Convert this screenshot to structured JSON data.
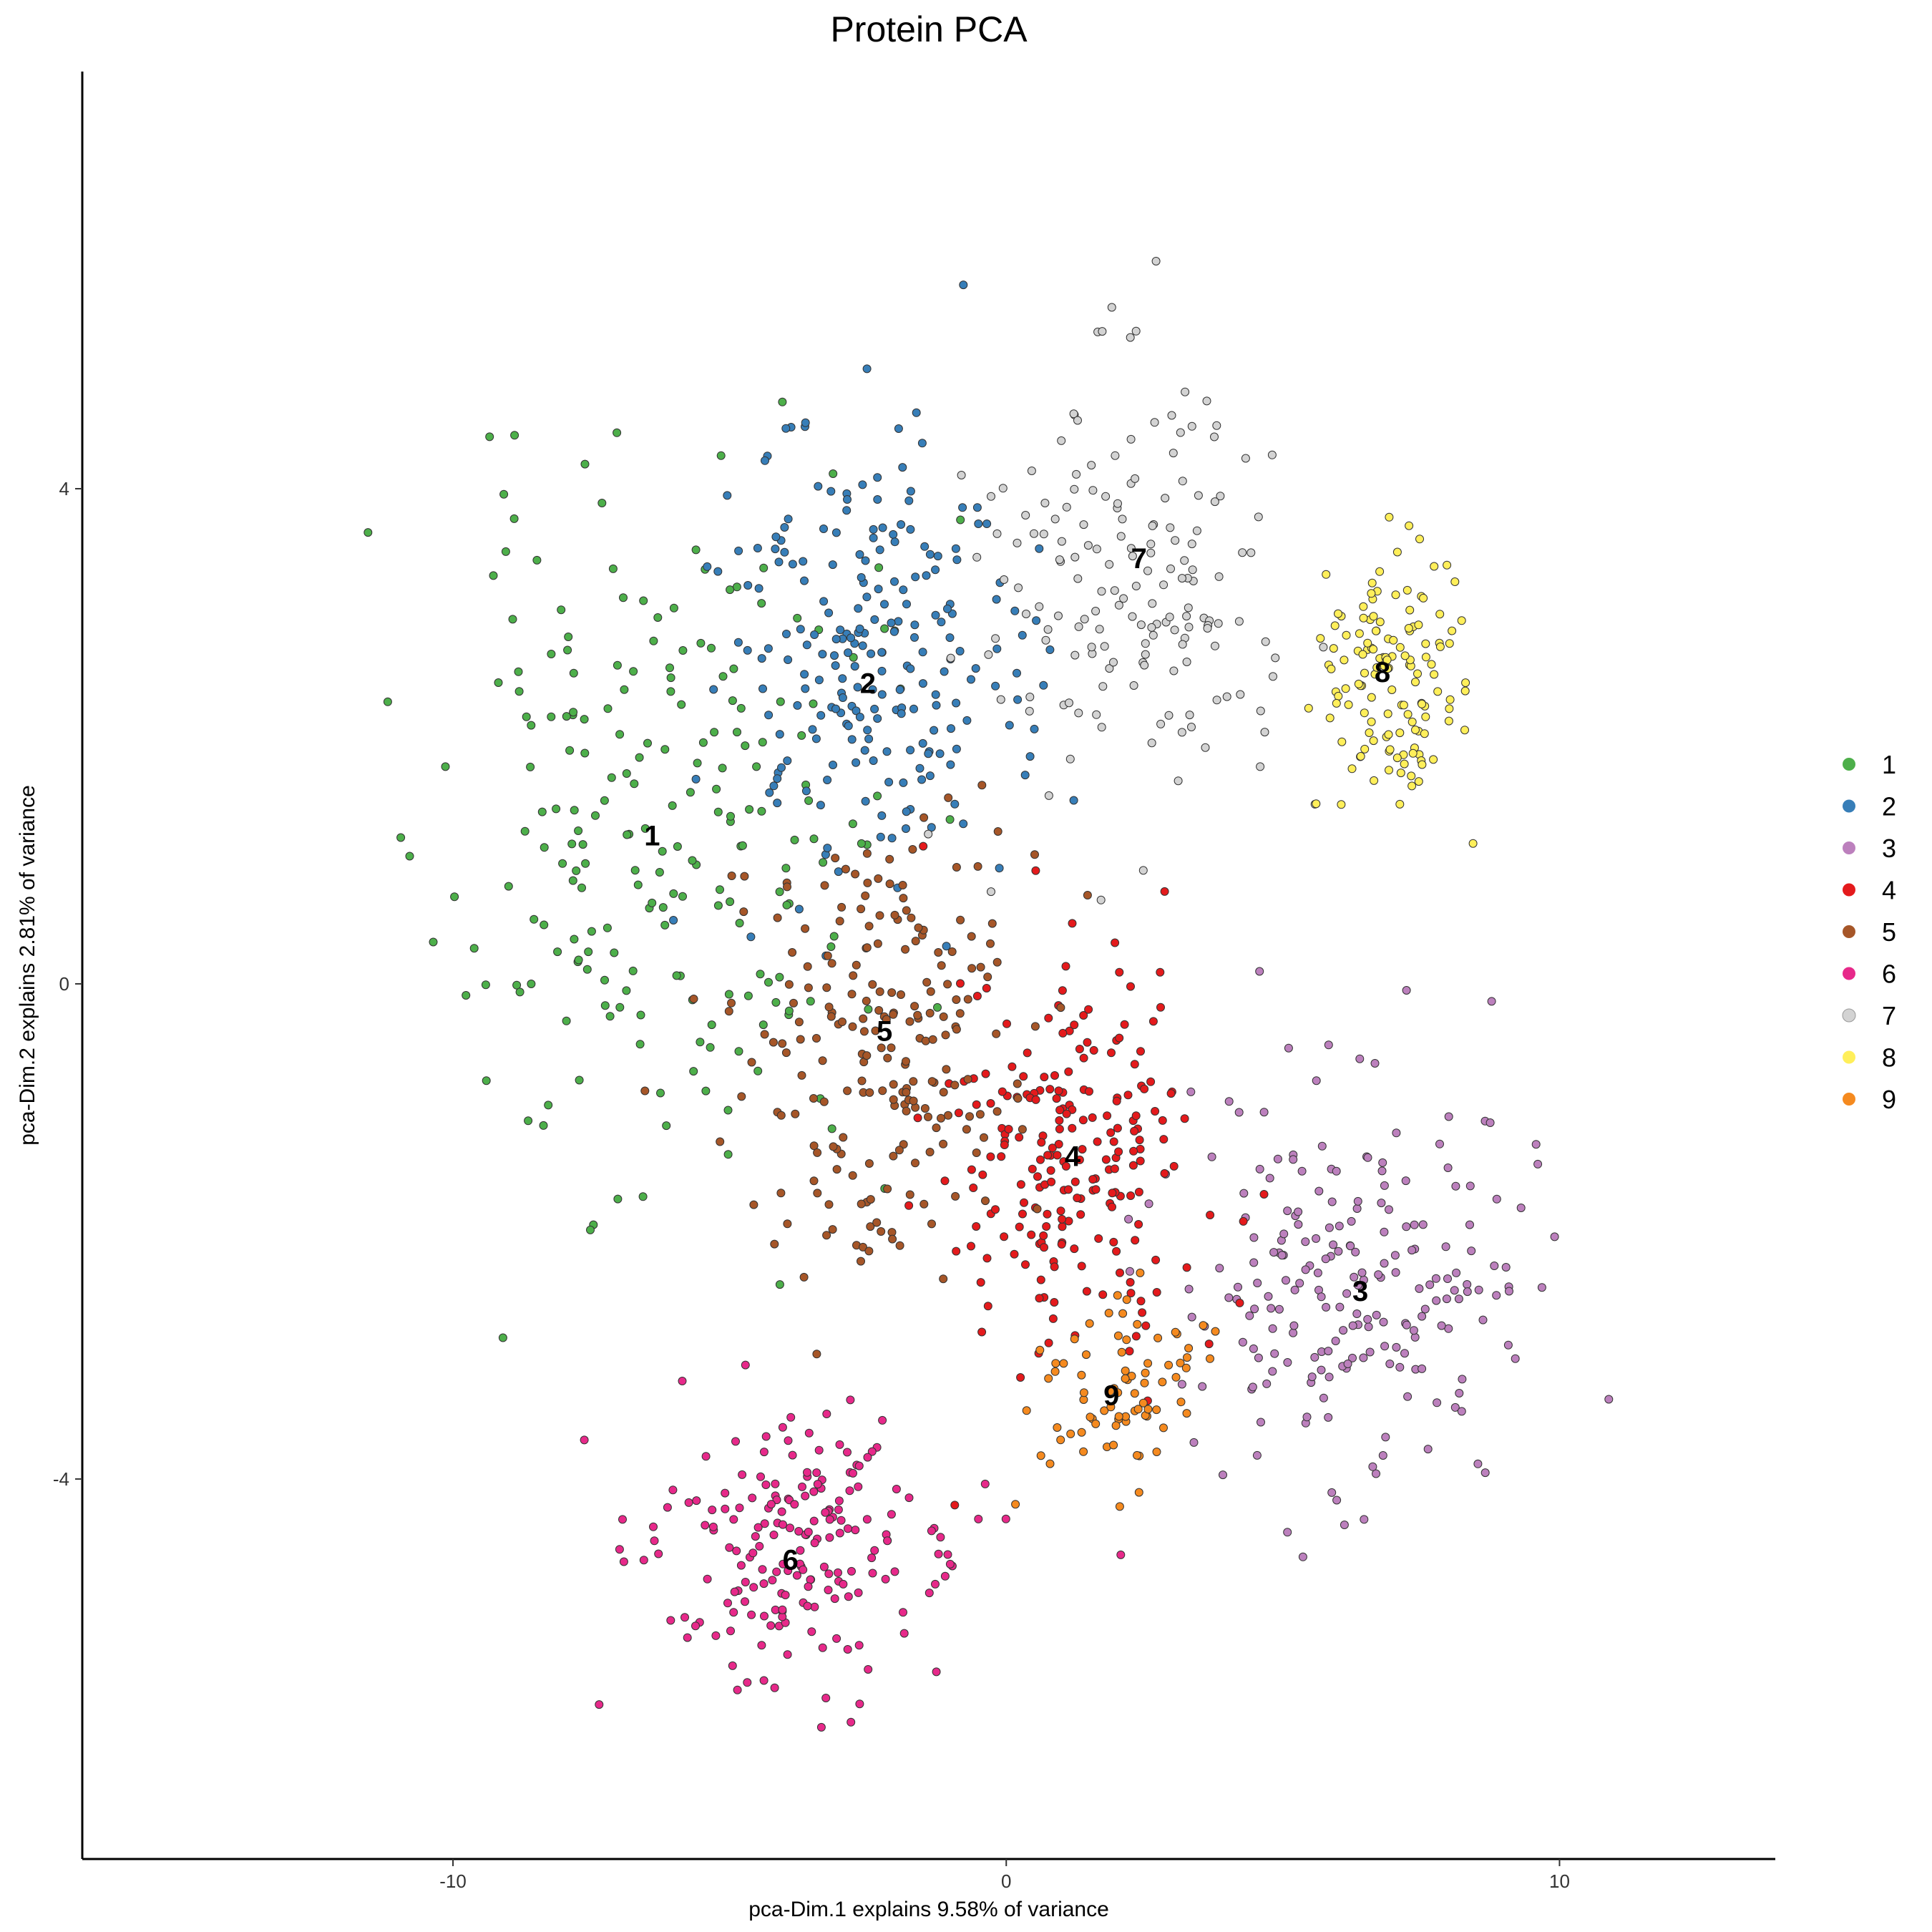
{
  "chart_data": {
    "type": "scatter",
    "title": "Protein PCA",
    "xlabel": "pca-Dim.1 explains 9.58% of variance",
    "ylabel": "pca-Dim.2 explains 2.81% of variance",
    "xlim": [
      -16.7,
      13.9
    ],
    "ylim": [
      -7.07,
      7.37
    ],
    "xticks": [
      -10,
      0,
      10
    ],
    "yticks": [
      -4,
      0,
      4
    ],
    "grid": false,
    "legend_position": "right",
    "series": [
      {
        "name": "1",
        "color": "#4DAF4A",
        "center": [
          -6.4,
          1.2
        ],
        "spread": [
          3.1,
          2.3
        ],
        "count": 220,
        "seed": 11
      },
      {
        "name": "2",
        "color": "#377EB8",
        "center": [
          -2.5,
          2.6
        ],
        "spread": [
          2.2,
          1.5
        ],
        "count": 230,
        "seed": 23
      },
      {
        "name": "3",
        "color": "#BC80BD",
        "center": [
          6.4,
          -2.4
        ],
        "spread": [
          2.5,
          1.3
        ],
        "count": 220,
        "seed": 37
      },
      {
        "name": "4",
        "color": "#E41A1C",
        "center": [
          1.2,
          -1.3
        ],
        "spread": [
          1.7,
          1.4
        ],
        "count": 220,
        "seed": 41
      },
      {
        "name": "5",
        "color": "#A65628",
        "center": [
          -2.3,
          -0.5
        ],
        "spread": [
          2.0,
          1.4
        ],
        "count": 220,
        "seed": 53
      },
      {
        "name": "6",
        "color": "#E7298A",
        "center": [
          -3.8,
          -4.5
        ],
        "spread": [
          2.3,
          0.9
        ],
        "count": 200,
        "seed": 67
      },
      {
        "name": "7",
        "color": "#D3D3D3",
        "center": [
          2.3,
          3.3
        ],
        "spread": [
          2.4,
          1.4
        ],
        "count": 170,
        "seed": 71
      },
      {
        "name": "8",
        "color": "#FFEF5A",
        "center": [
          6.9,
          2.5
        ],
        "spread": [
          1.1,
          0.9
        ],
        "count": 140,
        "seed": 83
      },
      {
        "name": "9",
        "color": "#F58A1F",
        "center": [
          2.0,
          -3.3
        ],
        "spread": [
          1.3,
          0.65
        ],
        "count": 80,
        "seed": 97
      }
    ],
    "cluster_labels": [
      {
        "text": "1",
        "x": -6.4,
        "y": 1.2
      },
      {
        "text": "2",
        "x": -2.5,
        "y": 2.43
      },
      {
        "text": "3",
        "x": 6.4,
        "y": -2.48
      },
      {
        "text": "4",
        "x": 1.2,
        "y": -1.39
      },
      {
        "text": "5",
        "x": -2.2,
        "y": -0.38
      },
      {
        "text": "6",
        "x": -3.9,
        "y": -4.65
      },
      {
        "text": "7",
        "x": 2.4,
        "y": 3.44
      },
      {
        "text": "8",
        "x": 6.8,
        "y": 2.52
      },
      {
        "text": "9",
        "x": 1.9,
        "y": -3.32
      }
    ]
  }
}
